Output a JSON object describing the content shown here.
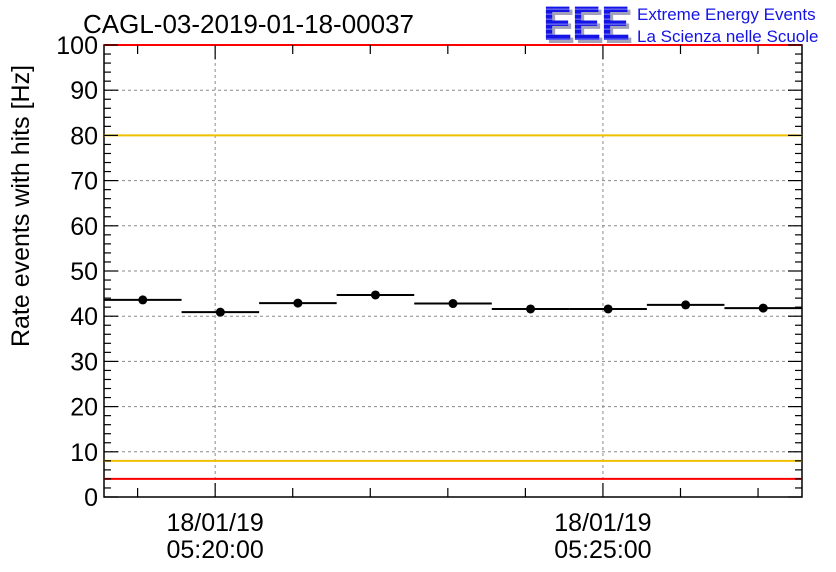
{
  "logo": {
    "letters": "EEE",
    "line1": "Extreme Energy Events",
    "line2": "La Scienza nelle Scuole"
  },
  "colors": {
    "logo": "#1414e6",
    "logo_shadow": "#a2a2ba",
    "frame": "#000000",
    "grid": "#8a8a8a",
    "marker": "#000000"
  },
  "chart_data": {
    "type": "scatter",
    "title": "CAGL-03-2019-01-18-00037",
    "ylabel": "Rate events with hits [Hz]",
    "ylim": [
      0,
      100
    ],
    "yticks": [
      0,
      10,
      20,
      30,
      40,
      50,
      60,
      70,
      80,
      90,
      100
    ],
    "xlim": [
      "05:18:34",
      "05:27:34"
    ],
    "x_ticks": [
      {
        "date": "18/01/19",
        "time": "05:20:00"
      },
      {
        "date": "18/01/19",
        "time": "05:25:00"
      }
    ],
    "grid": true,
    "reference_lines": [
      {
        "y": 100,
        "color": "#ff0000"
      },
      {
        "y": 80,
        "color": "#f0c000"
      },
      {
        "y": 8,
        "color": "#f0c000"
      },
      {
        "y": 4,
        "color": "#ff0000"
      }
    ],
    "points": [
      {
        "x": "05:19:04",
        "x_low": "05:18:34",
        "x_high": "05:19:34",
        "y": 43.6
      },
      {
        "x": "05:20:04",
        "x_low": "05:19:34",
        "x_high": "05:20:34",
        "y": 40.9
      },
      {
        "x": "05:21:04",
        "x_low": "05:20:34",
        "x_high": "05:21:34",
        "y": 42.9
      },
      {
        "x": "05:22:04",
        "x_low": "05:21:34",
        "x_high": "05:22:34",
        "y": 44.7
      },
      {
        "x": "05:23:04",
        "x_low": "05:22:34",
        "x_high": "05:23:34",
        "y": 42.8
      },
      {
        "x": "05:24:04",
        "x_low": "05:23:34",
        "x_high": "05:24:34",
        "y": 41.6
      },
      {
        "x": "05:25:04",
        "x_low": "05:24:34",
        "x_high": "05:25:34",
        "y": 41.6
      },
      {
        "x": "05:26:04",
        "x_low": "05:25:34",
        "x_high": "05:26:34",
        "y": 42.5
      },
      {
        "x": "05:27:04",
        "x_low": "05:26:34",
        "x_high": "05:27:34",
        "y": 41.8
      }
    ]
  }
}
